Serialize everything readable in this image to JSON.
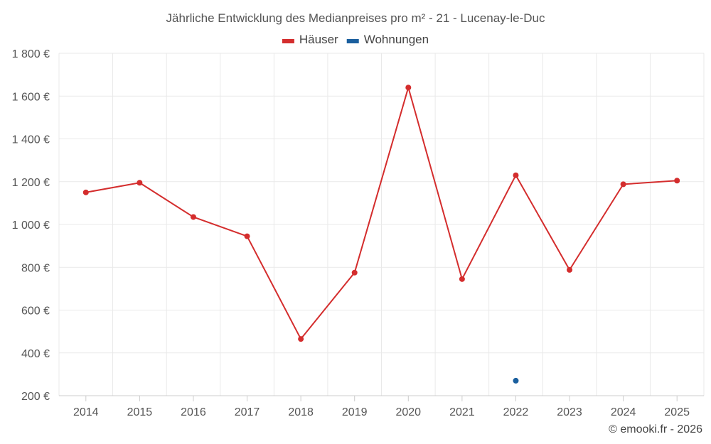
{
  "chart_data": {
    "type": "line",
    "title": "Jährliche Entwicklung des Medianpreises pro m² - 21 - Lucenay-le-Duc",
    "legend": {
      "placement": "top-center"
    },
    "categories": [
      "2014",
      "2015",
      "2016",
      "2017",
      "2018",
      "2019",
      "2020",
      "2021",
      "2022",
      "2023",
      "2024",
      "2025"
    ],
    "series": [
      {
        "name": "Häuser",
        "color": "#d42d2d",
        "values": [
          1150,
          1195,
          1035,
          945,
          465,
          775,
          1640,
          745,
          1230,
          788,
          1188,
          1205
        ]
      },
      {
        "name": "Wohnungen",
        "color": "#1a5f9e",
        "values": [
          null,
          null,
          null,
          null,
          null,
          null,
          null,
          null,
          270,
          null,
          null,
          null
        ]
      }
    ],
    "ylim": [
      200,
      1800
    ],
    "yticks": [
      200,
      400,
      600,
      800,
      1000,
      1200,
      1400,
      1600,
      1800
    ],
    "ytick_labels": [
      "200 €",
      "400 €",
      "600 €",
      "800 €",
      "1 000 €",
      "1 200 €",
      "1 400 €",
      "1 600 €",
      "1 800 €"
    ],
    "grid": true,
    "credit": "© emooki.fr - 2026"
  }
}
